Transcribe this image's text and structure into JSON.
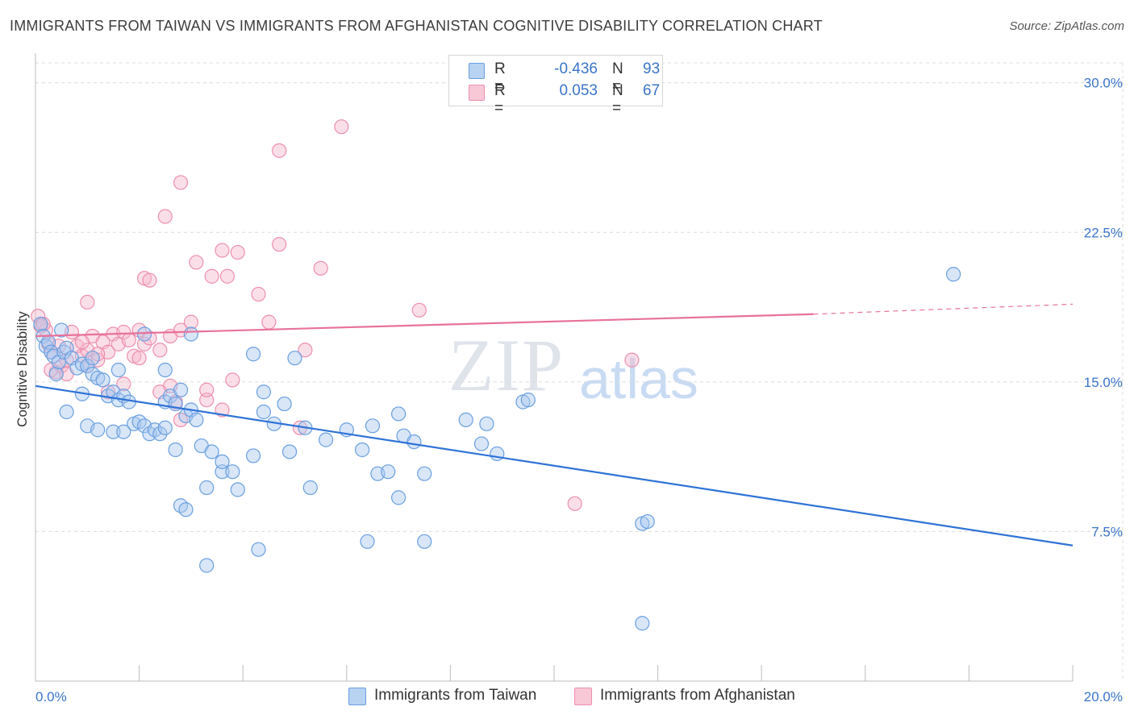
{
  "header": {
    "title": "IMMIGRANTS FROM TAIWAN VS IMMIGRANTS FROM AFGHANISTAN COGNITIVE DISABILITY CORRELATION CHART",
    "source": "Source: ZipAtlas.com"
  },
  "watermark": {
    "part1": "ZIP",
    "part2": "atlas"
  },
  "legend": {
    "rows": [
      {
        "r_label": "R =",
        "r_value": "-0.436",
        "n_label": "N =",
        "n_value": "93"
      },
      {
        "r_label": "R =",
        "r_value": "0.053",
        "n_label": "N =",
        "n_value": "67"
      }
    ]
  },
  "colors": {
    "taiwan_fill": "#a9c8ef",
    "taiwan_stroke": "#6a9fe0",
    "taiwan_line": "#2f73d6",
    "afghan_fill": "#f6b9cc",
    "afghan_stroke": "#ec8fae",
    "afghan_line": "#e8729a",
    "tick_text": "#3a74c9",
    "grid": "#dcdcdc"
  },
  "chart_data": {
    "type": "scatter",
    "title": "IMMIGRANTS FROM TAIWAN VS IMMIGRANTS FROM AFGHANISTAN COGNITIVE DISABILITY CORRELATION CHART",
    "xlabel": "",
    "ylabel": "Cognitive Disability",
    "xlim": [
      0,
      20
    ],
    "ylim": [
      0,
      31
    ],
    "x_tick_labels": [
      "0.0%",
      "20.0%"
    ],
    "y_ticks": [
      7.5,
      15.0,
      22.5,
      30.0
    ],
    "y_tick_labels": [
      "7.5%",
      "15.0%",
      "22.5%",
      "30.0%"
    ],
    "grid": true,
    "legend_position": "top-center",
    "series": [
      {
        "name": "Immigrants from Taiwan",
        "color": "#6a9fe0",
        "trend": {
          "x": [
            0.0,
            20.0
          ],
          "y": [
            14.8,
            6.8
          ]
        },
        "points": [
          [
            0.1,
            17.9
          ],
          [
            0.15,
            17.3
          ],
          [
            0.2,
            16.8
          ],
          [
            0.25,
            17.0
          ],
          [
            0.3,
            16.5
          ],
          [
            0.35,
            16.3
          ],
          [
            0.4,
            15.4
          ],
          [
            0.45,
            16.0
          ],
          [
            0.55,
            16.5
          ],
          [
            0.6,
            16.7
          ],
          [
            0.7,
            16.2
          ],
          [
            0.8,
            15.7
          ],
          [
            0.9,
            15.9
          ],
          [
            1.0,
            15.8
          ],
          [
            1.1,
            15.4
          ],
          [
            1.2,
            15.2
          ],
          [
            1.3,
            15.1
          ],
          [
            1.4,
            14.3
          ],
          [
            1.5,
            14.5
          ],
          [
            1.6,
            14.1
          ],
          [
            1.7,
            14.3
          ],
          [
            1.8,
            14.0
          ],
          [
            0.9,
            14.4
          ],
          [
            1.0,
            12.8
          ],
          [
            1.2,
            12.6
          ],
          [
            1.5,
            12.5
          ],
          [
            1.9,
            12.9
          ],
          [
            2.0,
            13.0
          ],
          [
            2.1,
            12.8
          ],
          [
            2.2,
            12.4
          ],
          [
            2.3,
            12.6
          ],
          [
            2.4,
            12.4
          ],
          [
            2.5,
            14.0
          ],
          [
            2.6,
            14.3
          ],
          [
            2.7,
            13.9
          ],
          [
            2.8,
            14.6
          ],
          [
            2.9,
            13.3
          ],
          [
            3.0,
            13.6
          ],
          [
            3.1,
            13.1
          ],
          [
            2.5,
            15.6
          ],
          [
            3.2,
            11.8
          ],
          [
            2.7,
            11.6
          ],
          [
            3.4,
            11.5
          ],
          [
            3.6,
            10.5
          ],
          [
            3.8,
            10.5
          ],
          [
            3.9,
            9.6
          ],
          [
            2.8,
            8.8
          ],
          [
            2.9,
            8.6
          ],
          [
            3.3,
            9.7
          ],
          [
            4.2,
            16.4
          ],
          [
            4.4,
            14.5
          ],
          [
            4.4,
            13.5
          ],
          [
            4.6,
            12.9
          ],
          [
            4.8,
            13.9
          ],
          [
            4.9,
            11.5
          ],
          [
            5.2,
            12.7
          ],
          [
            5.3,
            9.7
          ],
          [
            5.6,
            12.1
          ],
          [
            6.0,
            12.6
          ],
          [
            6.3,
            11.6
          ],
          [
            6.5,
            12.8
          ],
          [
            6.6,
            10.4
          ],
          [
            6.8,
            10.5
          ],
          [
            7.0,
            13.4
          ],
          [
            7.1,
            12.3
          ],
          [
            7.3,
            12.0
          ],
          [
            7.5,
            10.4
          ],
          [
            7.0,
            9.2
          ],
          [
            7.5,
            7.0
          ],
          [
            8.3,
            13.1
          ],
          [
            8.7,
            12.9
          ],
          [
            8.6,
            11.9
          ],
          [
            8.9,
            11.4
          ],
          [
            9.4,
            14.0
          ],
          [
            9.5,
            14.1
          ],
          [
            2.1,
            17.4
          ],
          [
            3.0,
            17.4
          ],
          [
            0.5,
            17.6
          ],
          [
            1.1,
            16.2
          ],
          [
            1.6,
            15.6
          ],
          [
            4.3,
            6.6
          ],
          [
            3.3,
            5.8
          ],
          [
            11.7,
            7.9
          ],
          [
            11.8,
            8.0
          ],
          [
            11.7,
            2.9
          ],
          [
            17.7,
            20.4
          ],
          [
            6.4,
            7.0
          ],
          [
            5.0,
            16.2
          ],
          [
            2.5,
            12.7
          ],
          [
            3.6,
            11.0
          ],
          [
            4.2,
            11.3
          ],
          [
            1.7,
            12.5
          ],
          [
            0.6,
            13.5
          ]
        ]
      },
      {
        "name": "Immigrants from Afghanistan",
        "color": "#ec8fae",
        "trend": {
          "x": [
            0.0,
            15.0
          ],
          "y": [
            17.3,
            18.4
          ]
        },
        "trend_extension": {
          "x": [
            15.0,
            20.0
          ],
          "y": [
            18.4,
            18.9
          ]
        },
        "points": [
          [
            0.05,
            18.3
          ],
          [
            0.1,
            17.8
          ],
          [
            0.2,
            17.6
          ],
          [
            0.25,
            16.9
          ],
          [
            0.3,
            16.5
          ],
          [
            0.4,
            15.5
          ],
          [
            0.5,
            15.8
          ],
          [
            0.6,
            16.1
          ],
          [
            0.7,
            17.5
          ],
          [
            0.8,
            16.8
          ],
          [
            0.9,
            16.3
          ],
          [
            1.0,
            16.6
          ],
          [
            1.1,
            17.3
          ],
          [
            1.2,
            16.1
          ],
          [
            1.3,
            17.0
          ],
          [
            1.4,
            16.5
          ],
          [
            1.5,
            17.4
          ],
          [
            1.6,
            16.9
          ],
          [
            1.7,
            17.5
          ],
          [
            1.8,
            17.1
          ],
          [
            1.9,
            16.3
          ],
          [
            2.0,
            17.6
          ],
          [
            2.1,
            16.9
          ],
          [
            2.2,
            17.2
          ],
          [
            2.4,
            16.6
          ],
          [
            2.6,
            17.3
          ],
          [
            2.8,
            17.6
          ],
          [
            3.0,
            18.0
          ],
          [
            1.0,
            19.0
          ],
          [
            2.1,
            20.2
          ],
          [
            2.2,
            20.1
          ],
          [
            3.1,
            21.0
          ],
          [
            3.4,
            20.3
          ],
          [
            3.7,
            20.3
          ],
          [
            3.6,
            21.6
          ],
          [
            3.9,
            21.5
          ],
          [
            4.3,
            19.4
          ],
          [
            4.5,
            18.0
          ],
          [
            4.7,
            21.9
          ],
          [
            5.2,
            16.6
          ],
          [
            5.5,
            20.7
          ],
          [
            2.8,
            25.0
          ],
          [
            2.5,
            23.3
          ],
          [
            4.7,
            26.6
          ],
          [
            5.9,
            27.8
          ],
          [
            7.4,
            18.6
          ],
          [
            11.5,
            16.1
          ],
          [
            10.4,
            8.9
          ],
          [
            2.6,
            14.8
          ],
          [
            2.7,
            14.0
          ],
          [
            3.3,
            14.1
          ],
          [
            3.6,
            13.6
          ],
          [
            3.8,
            15.1
          ],
          [
            5.1,
            12.7
          ],
          [
            2.8,
            13.1
          ],
          [
            0.3,
            15.6
          ],
          [
            0.6,
            15.4
          ],
          [
            1.0,
            15.8
          ],
          [
            1.2,
            16.4
          ],
          [
            0.9,
            17.0
          ],
          [
            1.7,
            14.9
          ],
          [
            2.4,
            14.5
          ],
          [
            3.3,
            14.6
          ],
          [
            1.4,
            14.5
          ],
          [
            2.0,
            16.2
          ],
          [
            0.45,
            16.8
          ],
          [
            0.15,
            17.9
          ]
        ]
      }
    ]
  },
  "bottom_legend": {
    "items": [
      {
        "label": "Immigrants from Taiwan"
      },
      {
        "label": "Immigrants from Afghanistan"
      }
    ]
  }
}
